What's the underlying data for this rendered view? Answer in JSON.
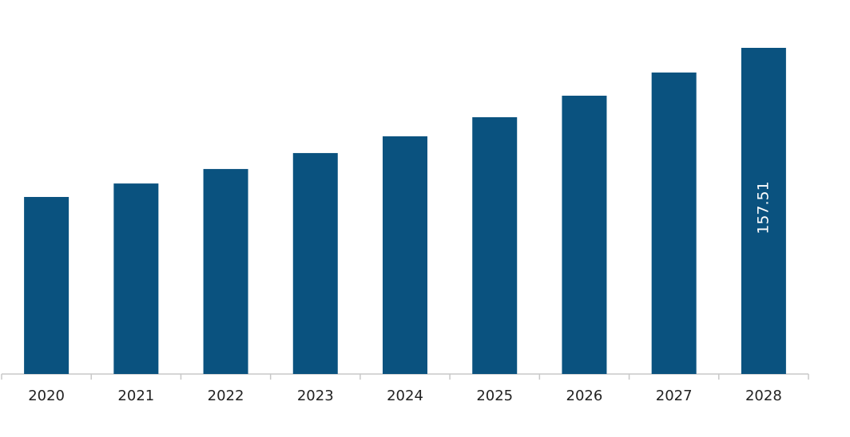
{
  "chart_data": {
    "type": "bar",
    "categories": [
      "2020",
      "2021",
      "2022",
      "2023",
      "2024",
      "2025",
      "2026",
      "2027",
      "2028"
    ],
    "values": [
      85.5,
      92.0,
      99.0,
      106.7,
      114.8,
      124.0,
      134.4,
      145.6,
      157.51
    ],
    "value_labels": [
      null,
      null,
      null,
      null,
      null,
      null,
      null,
      null,
      "157.51"
    ],
    "color": "#0a527f"
  }
}
